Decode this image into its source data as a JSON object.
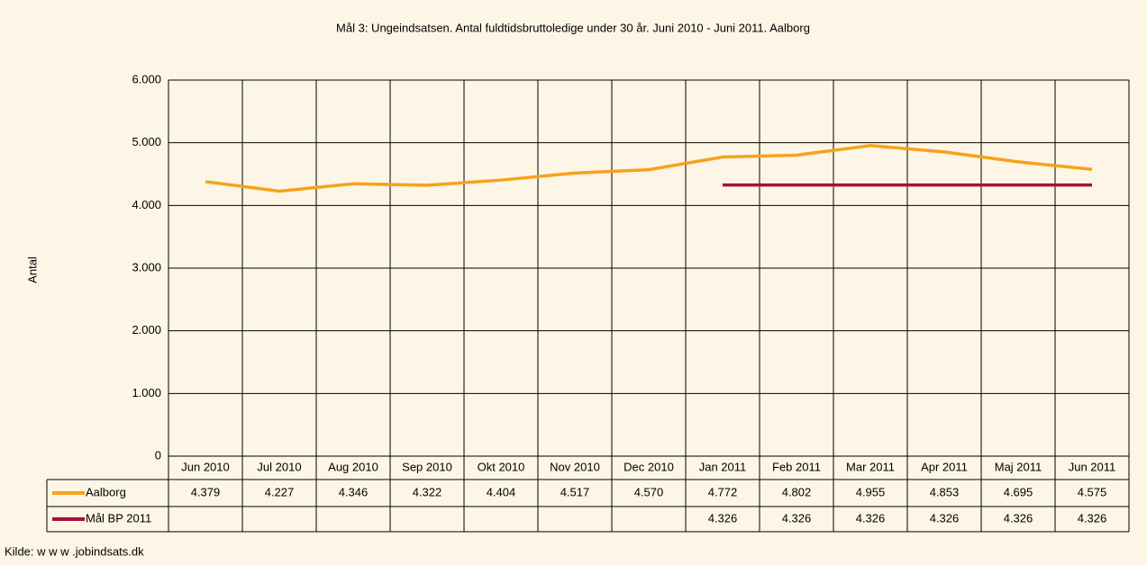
{
  "chart_data": {
    "type": "line",
    "title": "Mål 3: Ungeindsatsen. Antal fuldtidsbruttoledige under 30 år. Juni 2010 - Juni 2011. Aalborg",
    "y_label": "Antal",
    "source": "Kilde: w w w .jobindsats.dk",
    "categories": [
      "Jun 2010",
      "Jul 2010",
      "Aug 2010",
      "Sep 2010",
      "Okt 2010",
      "Nov 2010",
      "Dec 2010",
      "Jan 2011",
      "Feb 2011",
      "Mar 2011",
      "Apr 2011",
      "Maj 2011",
      "Jun 2011"
    ],
    "series": [
      {
        "name": "Aalborg",
        "color": "#f7a21b",
        "values": [
          4379,
          4227,
          4346,
          4322,
          4404,
          4517,
          4570,
          4772,
          4802,
          4955,
          4853,
          4695,
          4575
        ],
        "value_labels": [
          "4.379",
          "4.227",
          "4.346",
          "4.322",
          "4.404",
          "4.517",
          "4.570",
          "4.772",
          "4.802",
          "4.955",
          "4.853",
          "4.695",
          "4.575"
        ]
      },
      {
        "name": "Mål BP 2011",
        "color": "#a5113d",
        "values": [
          null,
          null,
          null,
          null,
          null,
          null,
          null,
          4326,
          4326,
          4326,
          4326,
          4326,
          4326
        ],
        "value_labels": [
          null,
          null,
          null,
          null,
          null,
          null,
          null,
          "4.326",
          "4.326",
          "4.326",
          "4.326",
          "4.326",
          "4.326"
        ]
      }
    ],
    "ylim": [
      0,
      6000
    ],
    "yticks": [
      0,
      {
        "value": 1000,
        "label": "1.000"
      },
      {
        "value": 2000,
        "label": "2.000"
      },
      {
        "value": 3000,
        "label": "3.000"
      },
      {
        "value": 4000,
        "label": "4.000"
      },
      {
        "value": 5000,
        "label": "5.000"
      },
      {
        "value": 6000,
        "label": "6.000"
      }
    ],
    "grid": true
  }
}
